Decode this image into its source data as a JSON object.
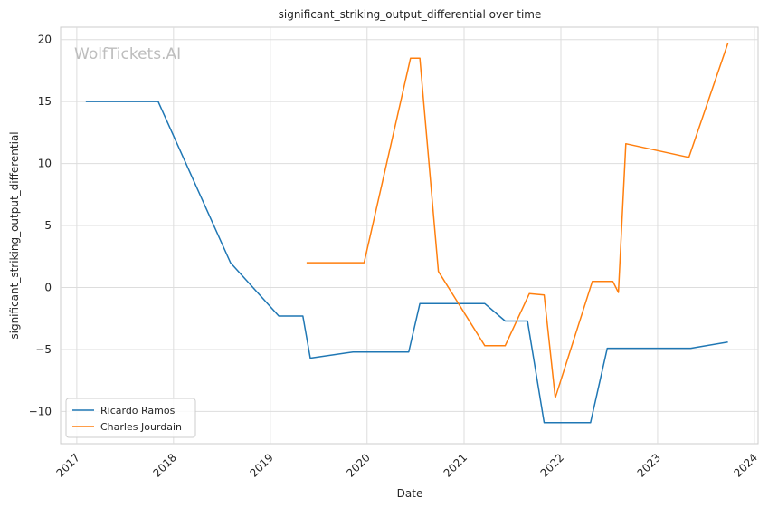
{
  "chart_data": {
    "type": "line",
    "title": "significant_striking_output_differential over time",
    "xlabel": "Date",
    "ylabel": "significant_striking_output_differential",
    "watermark": "WolfTickets.AI",
    "xlim": [
      "2016-11-01",
      "2024-01-15"
    ],
    "ylim": [
      -12.6,
      21.0
    ],
    "x_ticks": [
      "2017",
      "2018",
      "2019",
      "2020",
      "2021",
      "2022",
      "2023",
      "2024"
    ],
    "y_ticks": [
      20,
      15,
      10,
      5,
      0,
      -5,
      -10
    ],
    "grid": true,
    "legend": "bottom-left",
    "series": [
      {
        "name": "Ricardo Ramos",
        "color": "#1f77b4",
        "points": [
          [
            "2017-02-04",
            15.0
          ],
          [
            "2017-11-04",
            15.0
          ],
          [
            "2018-08-04",
            2.0
          ],
          [
            "2019-02-02",
            -2.3
          ],
          [
            "2019-05-04",
            -2.3
          ],
          [
            "2019-06-01",
            -5.7
          ],
          [
            "2019-11-09",
            -5.2
          ],
          [
            "2020-06-06",
            -5.2
          ],
          [
            "2020-07-18",
            -1.3
          ],
          [
            "2021-03-20",
            -1.3
          ],
          [
            "2021-06-05",
            -2.7
          ],
          [
            "2021-08-28",
            -2.7
          ],
          [
            "2021-10-30",
            -10.9
          ],
          [
            "2022-04-23",
            -10.9
          ],
          [
            "2022-06-25",
            -4.9
          ],
          [
            "2023-05-06",
            -4.9
          ],
          [
            "2023-09-23",
            -4.4
          ]
        ]
      },
      {
        "name": "Charles Jourdain",
        "color": "#ff7f0e",
        "points": [
          [
            "2019-05-18",
            2.0
          ],
          [
            "2019-12-21",
            2.0
          ],
          [
            "2020-06-13",
            18.5
          ],
          [
            "2020-07-18",
            18.5
          ],
          [
            "2020-09-26",
            1.3
          ],
          [
            "2021-03-20",
            -4.7
          ],
          [
            "2021-06-05",
            -4.7
          ],
          [
            "2021-09-04",
            -0.5
          ],
          [
            "2021-10-30",
            -0.6
          ],
          [
            "2021-12-11",
            -8.9
          ],
          [
            "2022-04-30",
            0.5
          ],
          [
            "2022-07-16",
            0.5
          ],
          [
            "2022-08-06",
            -0.4
          ],
          [
            "2022-09-03",
            11.6
          ],
          [
            "2023-04-29",
            10.5
          ],
          [
            "2023-09-23",
            19.7
          ]
        ]
      }
    ]
  }
}
